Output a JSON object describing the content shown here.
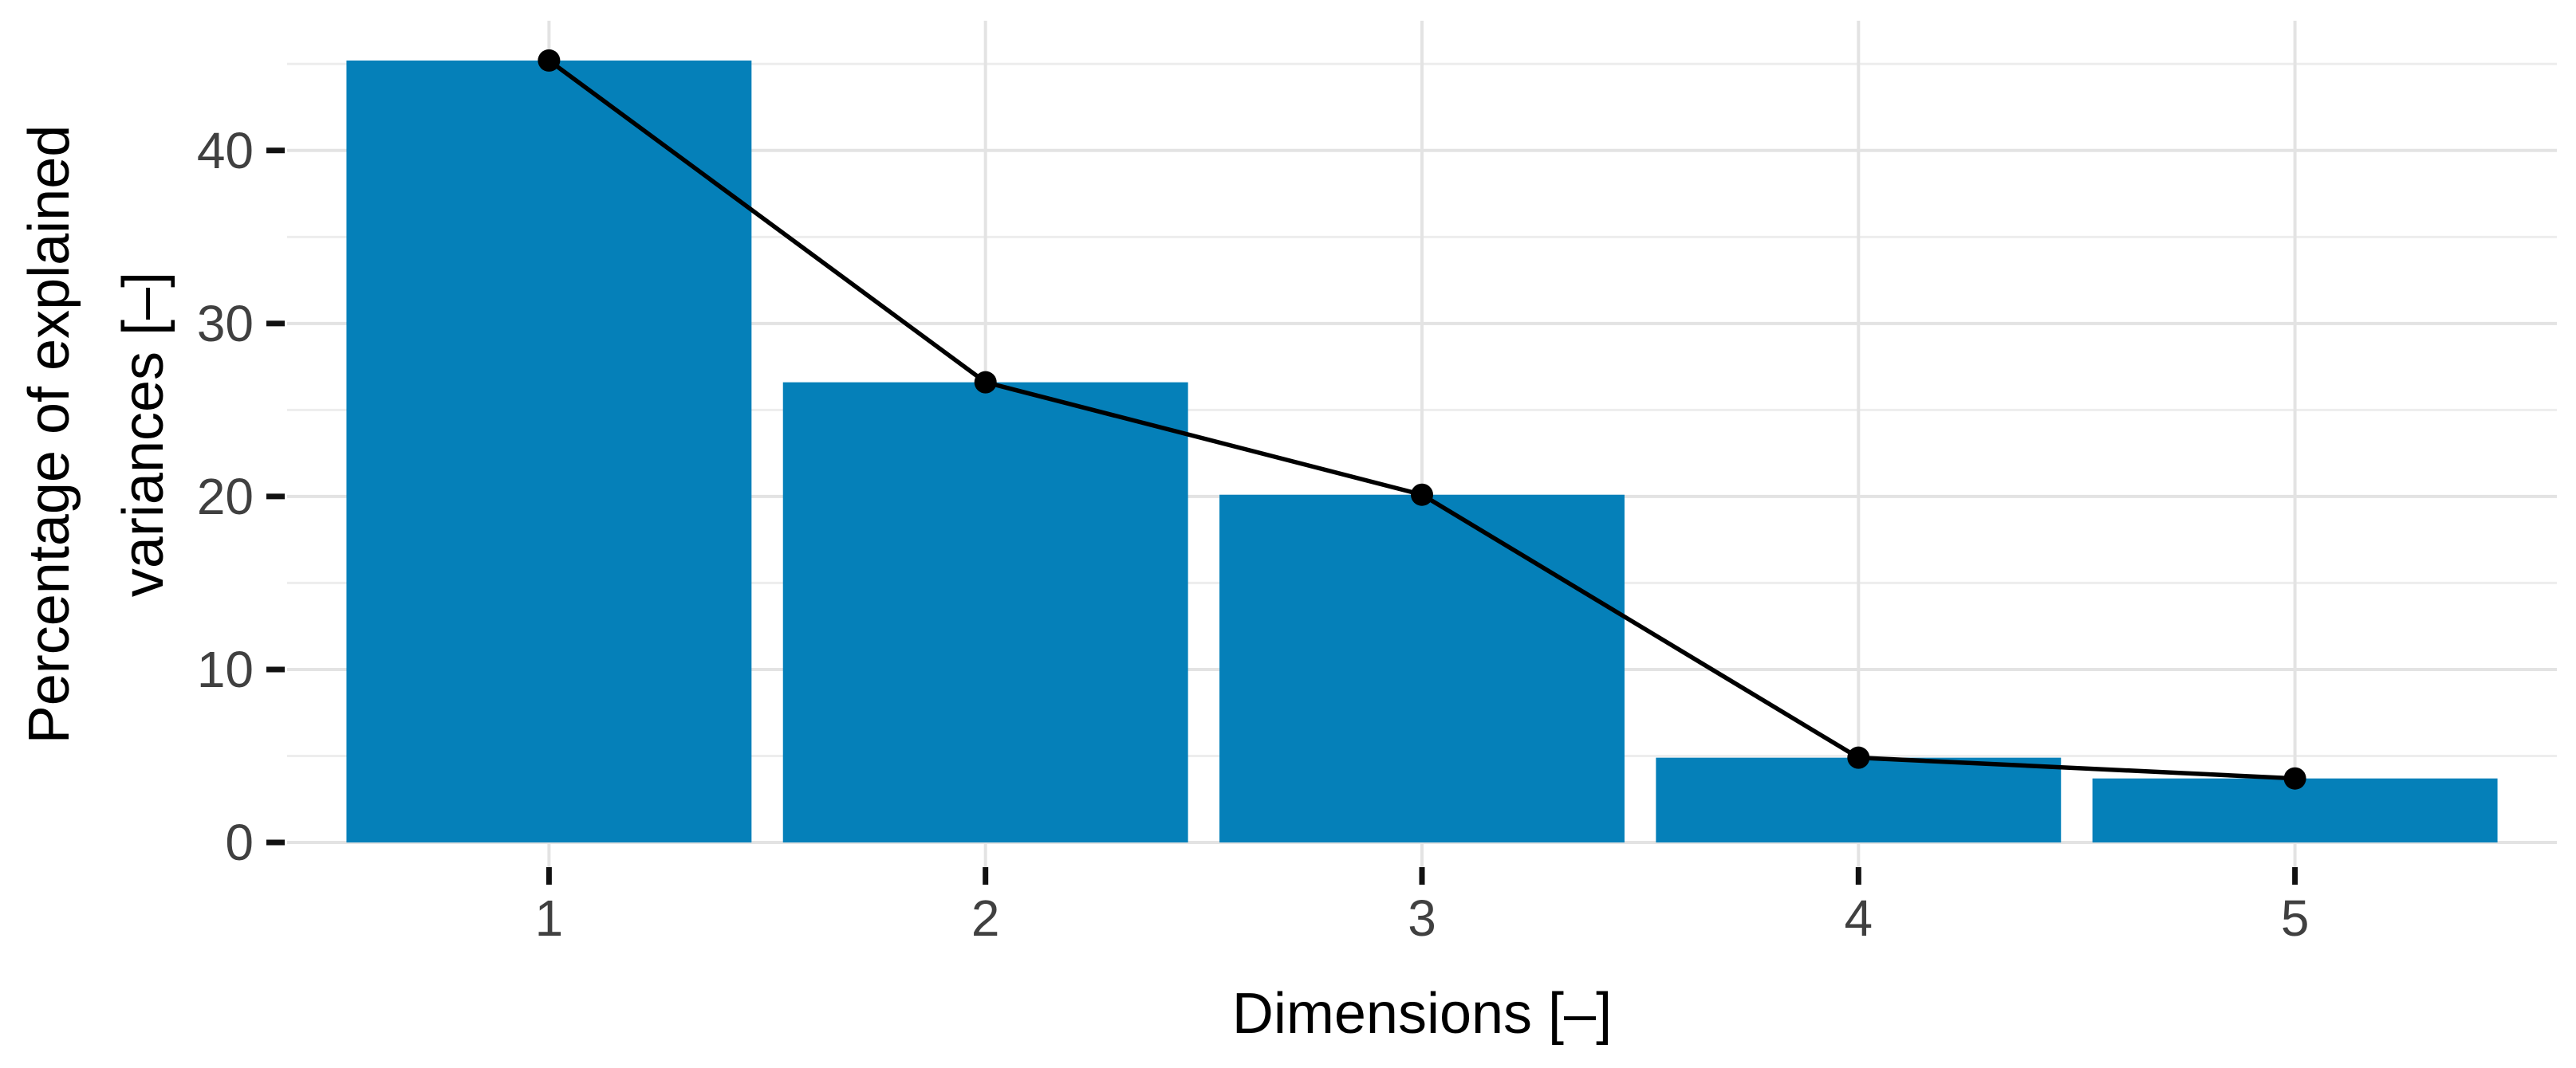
{
  "chart_data": {
    "type": "bar",
    "overlay": "line",
    "title": "",
    "categories": [
      "1",
      "2",
      "3",
      "4",
      "5"
    ],
    "values": [
      45.2,
      26.6,
      20.1,
      4.9,
      3.7
    ],
    "line_values": [
      45.2,
      26.6,
      20.1,
      4.9,
      3.7
    ],
    "xlabel": "Dimensions [–]",
    "ylabel": "Percentage of explained variances [–]",
    "ylabel_lines": [
      "Percentage of explained",
      "variances [–]"
    ],
    "y_ticks": [
      0,
      10,
      20,
      30,
      40
    ],
    "y_minor_ticks": [
      5,
      15,
      25,
      35,
      45
    ],
    "ylim": [
      0,
      47.5
    ],
    "grid": "horizontal major+minor, vertical major",
    "legend": "none",
    "colors": {
      "bar_fill": "#0580B9",
      "line": "#000000",
      "point": "#000000",
      "grid_major": "#E3E3E3",
      "grid_minor": "#EDEDED",
      "tick_mark": "#111111",
      "tick_label": "#404040",
      "axis_title": "#000000",
      "background": "#FFFFFF"
    }
  }
}
